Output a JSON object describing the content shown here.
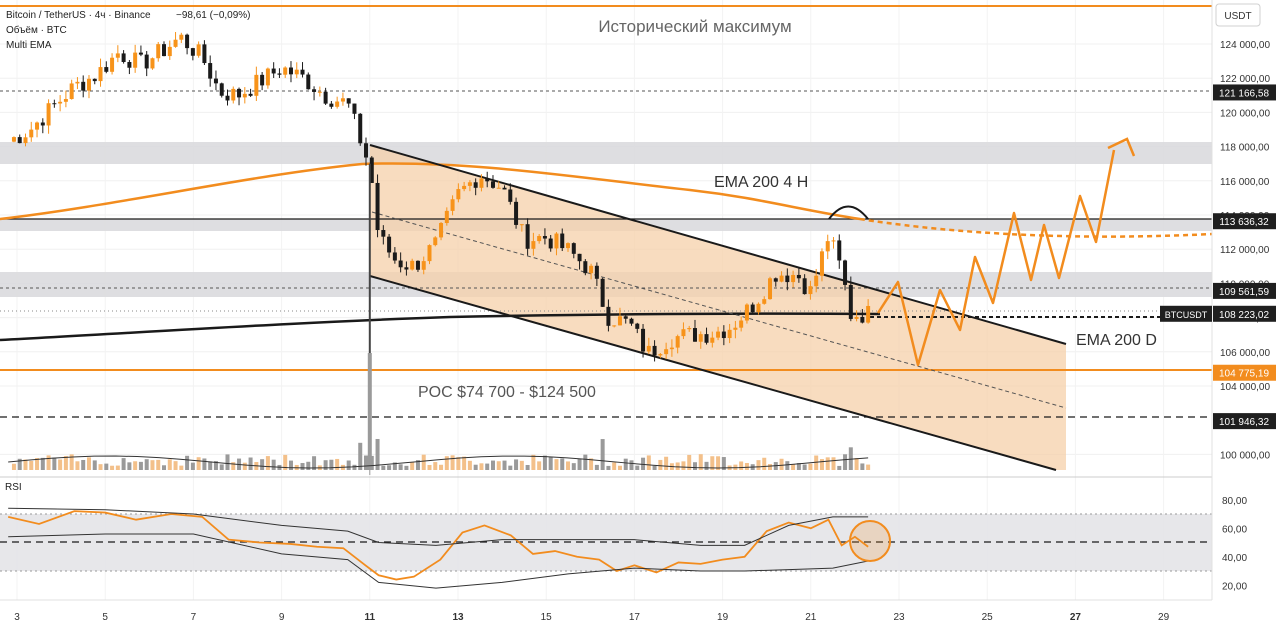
{
  "header": {
    "title_line": "Bitcoin / TetherUS · 4ч · Binance",
    "change": "−98,61 (−0,09%)",
    "volume_label": "Объём · BTC",
    "indicator_label": "Multi EMA"
  },
  "price_axis": {
    "currency": "USDT",
    "ticks": [
      "124 000,00",
      "122 000,00",
      "120 000,00",
      "118 000,00",
      "116 000,00",
      "114 000,00",
      "112 000,00",
      "110 000,00",
      "108 000,00",
      "106 000,00",
      "104 000,00",
      "100 000,00"
    ],
    "tick_values": [
      124000,
      122000,
      120000,
      118000,
      116000,
      114000,
      112000,
      110000,
      108000,
      106000,
      104000,
      100000
    ],
    "badges": [
      {
        "text": "121 166,58",
        "value": 121166.58,
        "style": "dark"
      },
      {
        "text": "113 636,32",
        "value": 113636.32,
        "style": "dark"
      },
      {
        "text": "109 561,59",
        "value": 109561.59,
        "style": "dark"
      },
      {
        "text": "108 223,02",
        "value": 108223.02,
        "style": "dark",
        "tag": "BTCUSDT"
      },
      {
        "text": "104 775,19",
        "value": 104775.19,
        "style": "orange"
      },
      {
        "text": "101 946,32",
        "value": 101946.32,
        "style": "dark"
      }
    ]
  },
  "rsi_axis": {
    "label": "RSI",
    "ticks": [
      "80,00",
      "60,00",
      "40,00",
      "20,00"
    ],
    "tick_values": [
      80,
      60,
      40,
      20
    ]
  },
  "time_axis": {
    "ticks": [
      "3",
      "5",
      "7",
      "9",
      "11",
      "13",
      "15",
      "17",
      "19",
      "21",
      "23",
      "25",
      "27",
      "29"
    ],
    "bold": [
      "11",
      "13",
      "27"
    ]
  },
  "annotations": {
    "ath": "Исторический максимум",
    "ema4h": "EMA 200 4 H",
    "emad": "EMA 200 D",
    "poc": "POC $74 700 - $124 500"
  },
  "colors": {
    "up": "#f7931a",
    "down": "#1a1a1a",
    "orange": "#f28c1e",
    "channel_fill": "#f5d0a9",
    "zone": "#d8d8dc"
  },
  "chart_data": {
    "type": "candlestick",
    "title": "Bitcoin / TetherUS · 4ч · Binance",
    "last_price": 108223.02,
    "key_levels": {
      "ath_line": 124500,
      "resistance_1": 121166.58,
      "ema200_4h_level": 113636.32,
      "resistance_2": 109561.59,
      "poc_line": 104775.19,
      "support_1": 101946.32
    },
    "close_path": [
      {
        "day": 2.8,
        "close": 118300
      },
      {
        "day": 3.3,
        "close": 119000
      },
      {
        "day": 3.8,
        "close": 120300
      },
      {
        "day": 4.3,
        "close": 121500
      },
      {
        "day": 4.8,
        "close": 122200
      },
      {
        "day": 5.3,
        "close": 123500
      },
      {
        "day": 5.8,
        "close": 122800
      },
      {
        "day": 6.3,
        "close": 123600
      },
      {
        "day": 6.7,
        "close": 124400
      },
      {
        "day": 7.2,
        "close": 123200
      },
      {
        "day": 7.6,
        "close": 121200
      },
      {
        "day": 8.0,
        "close": 121000
      },
      {
        "day": 8.5,
        "close": 121800
      },
      {
        "day": 9.0,
        "close": 122600
      },
      {
        "day": 9.5,
        "close": 122000
      },
      {
        "day": 10.0,
        "close": 121000
      },
      {
        "day": 10.5,
        "close": 120500
      },
      {
        "day": 11.0,
        "close": 116800
      },
      {
        "day": 11.2,
        "close": 112700
      },
      {
        "day": 11.6,
        "close": 111300
      },
      {
        "day": 12.0,
        "close": 111000
      },
      {
        "day": 12.5,
        "close": 112300
      },
      {
        "day": 13.0,
        "close": 115200
      },
      {
        "day": 13.5,
        "close": 116400
      },
      {
        "day": 14.0,
        "close": 115600
      },
      {
        "day": 14.5,
        "close": 112600
      },
      {
        "day": 15.0,
        "close": 112700
      },
      {
        "day": 15.5,
        "close": 111900
      },
      {
        "day": 16.0,
        "close": 110800
      },
      {
        "day": 16.4,
        "close": 108100
      },
      {
        "day": 16.9,
        "close": 107600
      },
      {
        "day": 17.3,
        "close": 105900
      },
      {
        "day": 17.8,
        "close": 106800
      },
      {
        "day": 18.3,
        "close": 107000
      },
      {
        "day": 18.8,
        "close": 107100
      },
      {
        "day": 19.2,
        "close": 107500
      },
      {
        "day": 19.7,
        "close": 108800
      },
      {
        "day": 20.2,
        "close": 110600
      },
      {
        "day": 20.7,
        "close": 110500
      },
      {
        "day": 21.0,
        "close": 109500
      },
      {
        "day": 21.4,
        "close": 112800
      },
      {
        "day": 21.7,
        "close": 110700
      },
      {
        "day": 21.9,
        "close": 108200
      },
      {
        "day": 22.3,
        "close": 108223
      }
    ],
    "rsi": {
      "last": 47,
      "overbought": 70,
      "oversold": 30,
      "mid": 50
    }
  }
}
